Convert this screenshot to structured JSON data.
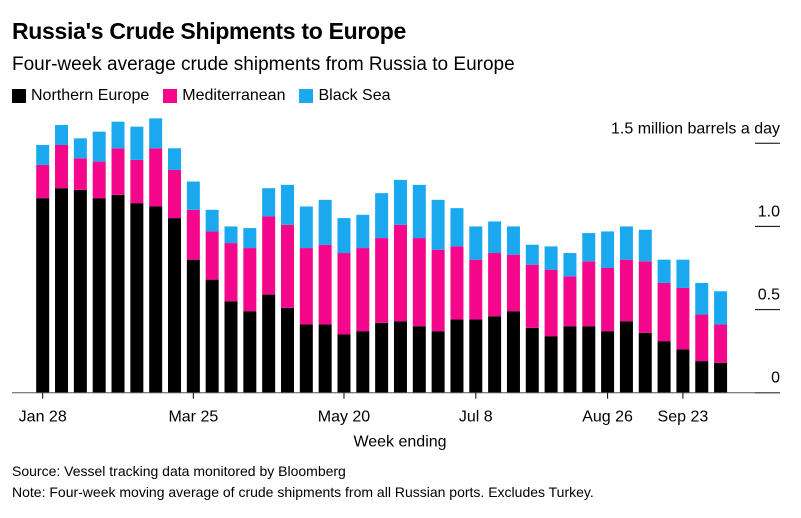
{
  "title": "Russia's Crude Shipments to Europe",
  "subtitle": "Four-week average crude shipments from Russia to Europe",
  "source": "Source: Vessel tracking data monitored by Bloomberg",
  "note": "Note: Four-week moving average of crude shipments from all Russian ports. Excludes Turkey.",
  "chart_data": {
    "type": "bar",
    "stacked": true,
    "xlabel": "Week ending",
    "ylabel": "1.5 million barrels a day",
    "ylim": [
      0,
      1.5
    ],
    "yticks": [
      0,
      0.5,
      1.0,
      1.5
    ],
    "ytick_labels": [
      "0",
      "0.5",
      "1.0",
      "1.5 million barrels a day"
    ],
    "xtick_labels": [
      "Jan 28",
      "Mar 25",
      "May 20",
      "Jul 8",
      "Aug 26",
      "Sep 23"
    ],
    "legend_placement": "top-left",
    "grid": false,
    "categories": [
      "Jan 28",
      "Feb 4",
      "Feb 11",
      "Feb 18",
      "Feb 25",
      "Mar 4",
      "Mar 11",
      "Mar 18",
      "Mar 25",
      "Apr 1",
      "Apr 8",
      "Apr 15",
      "Apr 22",
      "Apr 29",
      "May 6",
      "May 13",
      "May 20",
      "May 27",
      "Jun 3",
      "Jun 10",
      "Jun 17",
      "Jun 24",
      "Jul 1",
      "Jul 8",
      "Jul 15",
      "Jul 22",
      "Jul 29",
      "Aug 5",
      "Aug 12",
      "Aug 19",
      "Aug 26",
      "Sep 2",
      "Sep 9",
      "Sep 16",
      "Sep 23",
      "Sep 30",
      "Oct 7"
    ],
    "series": [
      {
        "name": "Northern Europe",
        "color": "#000000",
        "values": [
          1.17,
          1.23,
          1.22,
          1.17,
          1.19,
          1.14,
          1.12,
          1.05,
          0.8,
          0.68,
          0.55,
          0.49,
          0.59,
          0.51,
          0.41,
          0.41,
          0.35,
          0.37,
          0.42,
          0.43,
          0.4,
          0.37,
          0.44,
          0.44,
          0.46,
          0.49,
          0.39,
          0.34,
          0.4,
          0.4,
          0.37,
          0.43,
          0.36,
          0.31,
          0.26,
          0.19,
          0.18
        ]
      },
      {
        "name": "Mediterranean",
        "color": "#f5078c",
        "values": [
          0.2,
          0.26,
          0.19,
          0.22,
          0.28,
          0.26,
          0.35,
          0.29,
          0.3,
          0.29,
          0.35,
          0.38,
          0.47,
          0.5,
          0.46,
          0.48,
          0.49,
          0.5,
          0.51,
          0.58,
          0.53,
          0.49,
          0.44,
          0.36,
          0.38,
          0.34,
          0.38,
          0.4,
          0.3,
          0.39,
          0.38,
          0.37,
          0.43,
          0.35,
          0.37,
          0.28,
          0.23
        ]
      },
      {
        "name": "Black Sea",
        "color": "#1aa8ef",
        "values": [
          0.12,
          0.12,
          0.12,
          0.18,
          0.16,
          0.2,
          0.18,
          0.13,
          0.17,
          0.13,
          0.1,
          0.12,
          0.17,
          0.24,
          0.25,
          0.27,
          0.21,
          0.2,
          0.27,
          0.27,
          0.32,
          0.3,
          0.23,
          0.2,
          0.19,
          0.17,
          0.12,
          0.14,
          0.14,
          0.17,
          0.22,
          0.2,
          0.19,
          0.14,
          0.17,
          0.19,
          0.2
        ]
      }
    ]
  }
}
